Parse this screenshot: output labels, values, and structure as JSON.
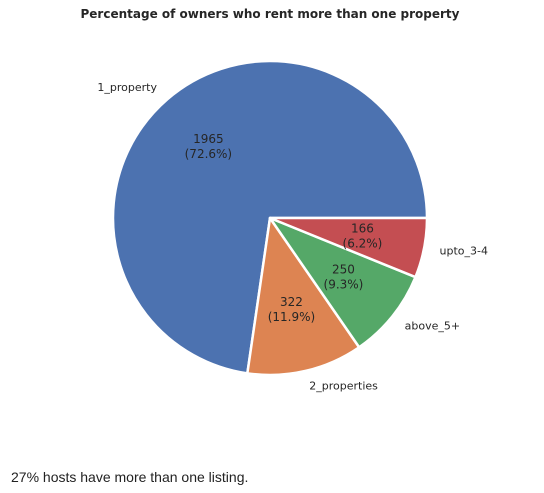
{
  "chart_data": {
    "type": "pie",
    "title": "Percentage of owners who rent more than one property",
    "categories": [
      "1_property",
      "2_properties",
      "above_5+",
      "upto_3-4"
    ],
    "values": [
      1965,
      322,
      250,
      166
    ],
    "percent_labels": [
      "1965\n(72.6%)",
      "322\n(11.9%)",
      "250\n(9.3%)",
      "166\n(6.2%)"
    ],
    "colors": [
      "#4c72b0",
      "#dd8452",
      "#55a868",
      "#c44e52"
    ],
    "start_angle_deg": 0,
    "direction": "counterclockwise"
  },
  "caption": "27% hosts have more than one listing."
}
